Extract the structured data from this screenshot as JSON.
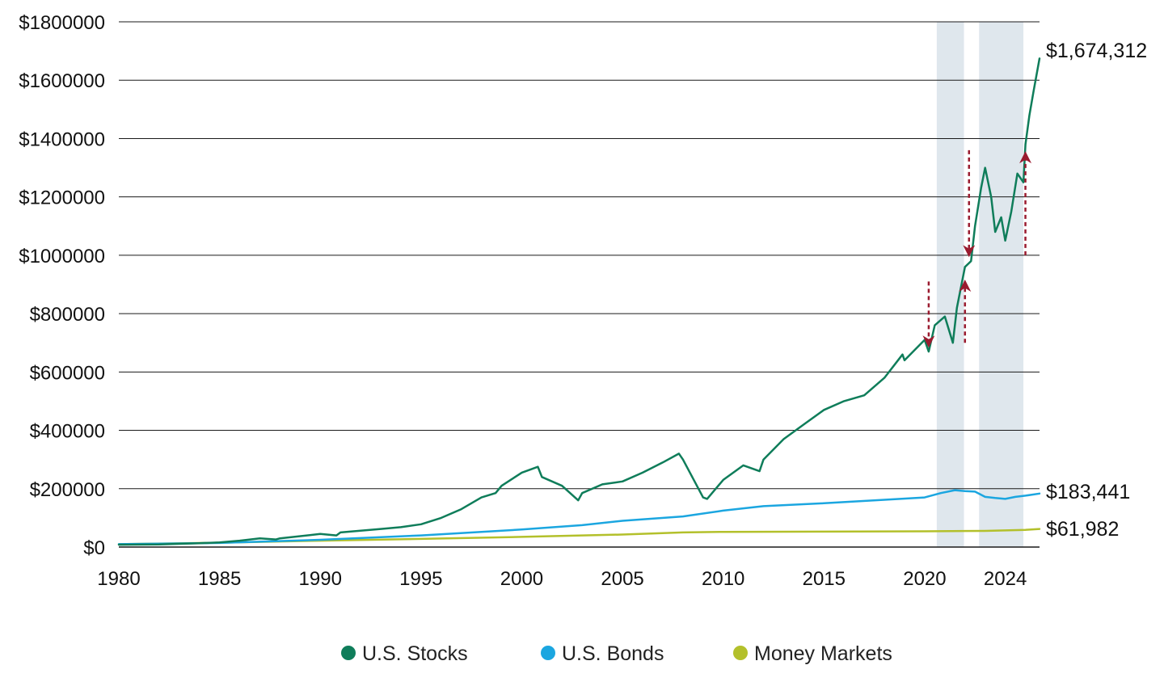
{
  "colors": {
    "stocks": "#0f7d5a",
    "bonds": "#1ba6e0",
    "money_markets": "#b3c02b",
    "shading": "#dfe7ed",
    "arrow": "#9a1b2f",
    "grid": "#1a1a1a"
  },
  "chart_data": {
    "type": "line",
    "title": "",
    "xlabel": "",
    "ylabel": "",
    "xlim": [
      1980,
      2025.7
    ],
    "ylim": [
      0,
      1800000
    ],
    "grid": "horizontal",
    "legend_position": "bottom-center",
    "y_ticks": [
      0,
      200000,
      400000,
      600000,
      800000,
      1000000,
      1200000,
      1400000,
      1600000,
      1800000
    ],
    "y_tick_labels": [
      "$0",
      "$200000",
      "$400000",
      "$600000",
      "$800000",
      "$1000000",
      "$1200000",
      "$1400000",
      "$1600000",
      "$1800000"
    ],
    "x_ticks": [
      1980,
      1985,
      1990,
      1995,
      2000,
      2005,
      2010,
      2015,
      2020,
      2024
    ],
    "x_tick_labels": [
      "1980",
      "1985",
      "1990",
      "1995",
      "2000",
      "2005",
      "2010",
      "2015",
      "2020",
      "2024"
    ],
    "shaded_periods": [
      [
        2020.6,
        2021.95
      ],
      [
        2022.7,
        2024.9
      ]
    ],
    "arrows": [
      {
        "x": 2020.2,
        "from": 910000,
        "to": 700000,
        "direction": "down"
      },
      {
        "x": 2022.0,
        "from": 700000,
        "to": 900000,
        "direction": "up"
      },
      {
        "x": 2022.2,
        "from": 1360000,
        "to": 1010000,
        "direction": "down"
      },
      {
        "x": 2025.0,
        "from": 1000000,
        "to": 1340000,
        "direction": "up"
      }
    ],
    "series": [
      {
        "name": "U.S. Stocks",
        "end_label": "$1,674,312",
        "x": [
          1980,
          1982,
          1984,
          1985,
          1986,
          1987,
          1987.8,
          1988,
          1990,
          1990.8,
          1991,
          1992,
          1993,
          1994,
          1995,
          1996,
          1997,
          1998,
          1998.7,
          1999,
          2000,
          2000.8,
          2001,
          2002,
          2002.8,
          2003,
          2004,
          2005,
          2006,
          2007,
          2007.8,
          2008,
          2009,
          2009.2,
          2010,
          2011,
          2011.8,
          2012,
          2013,
          2014,
          2015,
          2016,
          2017,
          2018,
          2018.9,
          2019,
          2020,
          2020.2,
          2020.5,
          2021,
          2021.4,
          2021.6,
          2022,
          2022.3,
          2022.5,
          2022.8,
          2023,
          2023.3,
          2023.5,
          2023.8,
          2024,
          2024.3,
          2024.6,
          2024.9,
          2025,
          2025.2,
          2025.4,
          2025.7
        ],
        "values": [
          8000,
          9000,
          13000,
          16000,
          22000,
          30000,
          26000,
          30000,
          45000,
          40000,
          50000,
          56000,
          62000,
          68000,
          78000,
          100000,
          130000,
          170000,
          185000,
          210000,
          255000,
          275000,
          240000,
          210000,
          160000,
          185000,
          215000,
          225000,
          255000,
          290000,
          320000,
          300000,
          170000,
          165000,
          230000,
          280000,
          260000,
          300000,
          370000,
          420000,
          470000,
          500000,
          520000,
          580000,
          660000,
          640000,
          710000,
          670000,
          760000,
          790000,
          700000,
          820000,
          960000,
          980000,
          1100000,
          1230000,
          1300000,
          1200000,
          1080000,
          1130000,
          1050000,
          1150000,
          1280000,
          1250000,
          1380000,
          1480000,
          1560000,
          1674312
        ]
      },
      {
        "name": "U.S. Bonds",
        "end_label": "$183,441",
        "x": [
          1980,
          1985,
          1990,
          1995,
          2000,
          2003,
          2005,
          2008,
          2010,
          2012,
          2015,
          2018,
          2020,
          2020.8,
          2021.5,
          2022,
          2022.5,
          2023,
          2023.5,
          2024,
          2024.5,
          2025,
          2025.7
        ],
        "values": [
          10000,
          14000,
          25000,
          40000,
          60000,
          75000,
          90000,
          105000,
          125000,
          140000,
          150000,
          162000,
          170000,
          185000,
          195000,
          192000,
          190000,
          172000,
          168000,
          165000,
          172000,
          176000,
          183441
        ]
      },
      {
        "name": "Money Markets",
        "end_label": "$61,982",
        "x": [
          1980,
          1985,
          1990,
          1995,
          2000,
          2005,
          2008,
          2010,
          2015,
          2020,
          2022,
          2023,
          2024,
          2025,
          2025.7
        ],
        "values": [
          10000,
          15000,
          22000,
          28000,
          35000,
          43000,
          50000,
          52000,
          53000,
          54000,
          55000,
          55500,
          57000,
          59000,
          61982
        ]
      }
    ]
  }
}
